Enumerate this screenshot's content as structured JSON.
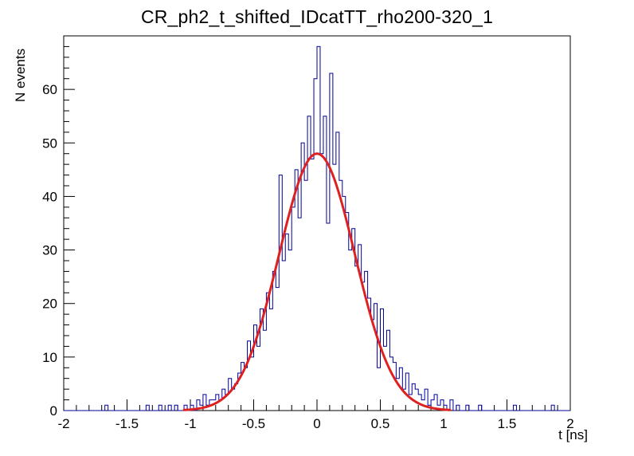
{
  "chart_data": {
    "type": "bar",
    "subtype": "histogram-step-with-gaussian-fit",
    "title": "CR_ph2_t_shifted_IDcatTT_rho200-320_1",
    "xlabel": "t [ns]",
    "ylabel": "N events",
    "xlim": [
      -2,
      2
    ],
    "ylim": [
      0,
      70
    ],
    "grid": false,
    "legend": "none",
    "x_major_ticks": [
      -2,
      -1.5,
      -1,
      -0.5,
      0,
      0.5,
      1,
      1.5,
      2
    ],
    "x_tick_labels": [
      "-2",
      "-1.5",
      "-1",
      "-0.5",
      "0",
      "0.5",
      "1",
      "1.5",
      "2"
    ],
    "y_major_ticks": [
      0,
      10,
      20,
      30,
      40,
      50,
      60
    ],
    "y_tick_labels": [
      "0",
      "10",
      "20",
      "30",
      "40",
      "50",
      "60"
    ],
    "x_minor_step": 0.1,
    "y_minor_step": 2,
    "hist_color": "#000099",
    "axis_color": "#000000",
    "bins": {
      "xmin": -2,
      "xmax": 2,
      "n": 160,
      "counts": [
        0,
        0,
        0,
        0,
        0,
        0,
        0,
        0,
        0,
        0,
        0,
        0,
        0,
        1,
        0,
        0,
        0,
        0,
        0,
        0,
        0,
        0,
        0,
        0,
        0,
        0,
        1,
        0,
        0,
        0,
        1,
        0,
        0,
        1,
        0,
        1,
        0,
        0,
        1,
        0,
        1,
        0,
        2,
        1,
        3,
        1,
        2,
        2,
        3,
        2,
        4,
        3,
        6,
        4,
        5,
        7,
        9,
        8,
        13,
        10,
        16,
        12,
        19,
        15,
        22,
        19,
        26,
        23,
        44,
        28,
        33,
        30,
        38,
        45,
        36,
        50,
        43,
        55,
        47,
        62,
        68,
        48,
        55,
        35,
        63,
        46,
        52,
        43,
        40,
        37,
        30,
        34,
        27,
        31,
        24,
        26,
        21,
        17,
        20,
        8,
        19,
        12,
        15,
        10,
        9,
        6,
        8,
        4,
        7,
        3,
        5,
        4,
        3,
        2,
        4,
        1,
        2,
        3,
        1,
        2,
        1,
        0,
        2,
        0,
        1,
        0,
        0,
        1,
        0,
        0,
        0,
        1,
        0,
        0,
        0,
        0,
        0,
        0,
        0,
        0,
        0,
        0,
        1,
        0,
        0,
        0,
        0,
        0,
        0,
        0,
        0,
        0,
        0,
        0,
        1,
        0,
        0,
        0,
        0,
        0
      ]
    },
    "fit": {
      "type": "gaussian",
      "amplitude": 48,
      "mean": 0,
      "sigma": 0.3,
      "range": [
        -1.05,
        1.05
      ],
      "color": "#dd2020",
      "width": 3
    }
  }
}
